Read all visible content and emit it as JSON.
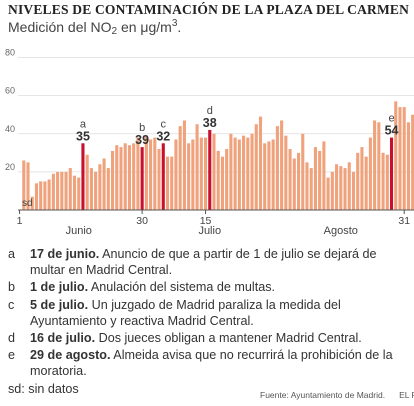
{
  "title": "NIVELES DE CONTAMINACIÓN DE LA PLAZA DEL CARMEN",
  "subtitle": {
    "pre": "Medición del NO",
    "sub": "2",
    "mid": " en μg/m",
    "sup": "3",
    "post": "."
  },
  "colors": {
    "bar": "#f0a27d",
    "highlight": "#c8102e",
    "grid": "#dddddd",
    "axis": "#555555"
  },
  "chart_data": {
    "type": "bar",
    "y_ticks": [
      0,
      20,
      40,
      60,
      80
    ],
    "ylim": [
      0,
      85
    ],
    "grid": true,
    "x_ticks": [
      {
        "label": "1",
        "day": 1
      },
      {
        "label": "Junio",
        "day": 15
      },
      {
        "label": "30",
        "day": 30
      },
      {
        "label": "15",
        "day": 45
      },
      {
        "label": "Julio",
        "day": 46
      },
      {
        "label": "Agosto",
        "day": 77
      },
      {
        "label": "31",
        "day": 92
      }
    ],
    "missing_label": "sd",
    "missing_days": [
      1
    ],
    "values": [
      null,
      26,
      25,
      7,
      14,
      15,
      15,
      16,
      19,
      20,
      20,
      20,
      22,
      18,
      17,
      35,
      29,
      22,
      20,
      24,
      27,
      22,
      31,
      34,
      33,
      35,
      34,
      35,
      38,
      33,
      39,
      37,
      38,
      32,
      35,
      28,
      28,
      37,
      44,
      47,
      35,
      37,
      45,
      38,
      38,
      42,
      40,
      31,
      28,
      32,
      40,
      38,
      37,
      39,
      38,
      40,
      45,
      49,
      35,
      36,
      37,
      44,
      47,
      39,
      32,
      27,
      30,
      40,
      25,
      22,
      33,
      31,
      36,
      17,
      20,
      24,
      23,
      22,
      25,
      20,
      30,
      33,
      28,
      38,
      47,
      46,
      30,
      29,
      38,
      57,
      54,
      54,
      46,
      50
    ],
    "highlights": [
      {
        "day": 16,
        "letter": "a",
        "value_label": "35"
      },
      {
        "day": 30,
        "letter": "b",
        "value_label": "39"
      },
      {
        "day": 35,
        "letter": "c",
        "value_label": "32"
      },
      {
        "day": 46,
        "letter": "d",
        "value_label": "38"
      },
      {
        "day": 89,
        "letter": "e",
        "value_label": "54"
      }
    ]
  },
  "notes": [
    {
      "letter": "a",
      "date": "17 de junio.",
      "text": " Anuncio de que a partir de 1 de julio se dejará de multar en Madrid Central."
    },
    {
      "letter": "b",
      "date": "1 de julio.",
      "text": " Anulación del sistema de multas."
    },
    {
      "letter": "c",
      "date": "5 de julio.",
      "text": " Un juzgado de Madrid paraliza la medida del Ayuntamiento y reactiva Madrid Central."
    },
    {
      "letter": "d",
      "date": "16 de julio.",
      "text": " Dos jueces obligan a mantener Madrid Central."
    },
    {
      "letter": "e",
      "date": "29 de agosto.",
      "text": " Almeida avisa que no recurrirá la prohibición de la moratoria."
    }
  ],
  "sd_note": "sd: sin datos",
  "footer": {
    "source": "Fuente: Ayuntamiento de Madrid.",
    "brand": "EL PAÍS"
  }
}
